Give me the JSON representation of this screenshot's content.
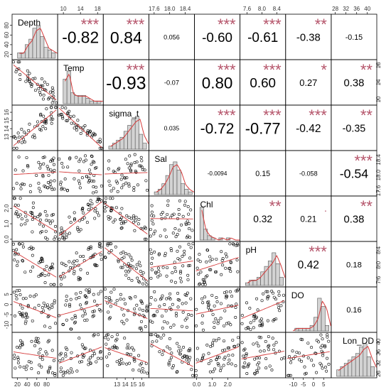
{
  "chart_data": {
    "type": "scatter-matrix",
    "variables": [
      "Depth",
      "Temp",
      "sigma_t",
      "Sal",
      "Chl",
      "pH",
      "DO",
      "Lon_DD"
    ],
    "axes": {
      "Depth": {
        "range": [
          12,
          100
        ],
        "ticks": [
          "20",
          "40",
          "60",
          "80",
          "20",
          "40",
          "60",
          "80"
        ]
      },
      "Temp": {
        "range": [
          9,
          19
        ],
        "ticks": [
          "10",
          "14",
          "18",
          "10",
          "14",
          "18"
        ]
      },
      "sigma_t": {
        "range": [
          11.5,
          16.7
        ],
        "ticks": [
          "13",
          "14",
          "15",
          "16",
          "13",
          "14",
          "15",
          "16"
        ]
      },
      "Sal": {
        "range": [
          17.5,
          18.6
        ],
        "ticks": [
          "17.6",
          "18.0",
          "18.4",
          "17.6",
          "18.0",
          "18.4"
        ]
      },
      "Chl": {
        "range": [
          -0.05,
          2.7
        ],
        "ticks": [
          "0.0",
          "1.0",
          "2.0",
          "0.0",
          "1.0",
          "2.0"
        ]
      },
      "pH": {
        "range": [
          7.45,
          8.6
        ],
        "ticks": [
          "7.6",
          "8.0",
          "8.4",
          "7.6",
          "8.0",
          "8.4"
        ]
      },
      "DO": {
        "range": [
          -13,
          8
        ],
        "ticks": [
          "-10",
          "-5",
          "0",
          "5",
          "-10",
          "-5",
          "0",
          "5"
        ]
      },
      "Lon_DD": {
        "range": [
          27,
          43
        ],
        "ticks": [
          "28",
          "32",
          "36",
          "40",
          "28",
          "32",
          "36",
          "40"
        ]
      }
    },
    "correlations": [
      {
        "a": "Depth",
        "b": "Temp",
        "r": "-0.82",
        "stars": "***"
      },
      {
        "a": "Depth",
        "b": "sigma_t",
        "r": "0.84",
        "stars": "***"
      },
      {
        "a": "Depth",
        "b": "Sal",
        "r": "0.056",
        "stars": ""
      },
      {
        "a": "Depth",
        "b": "Chl",
        "r": "-0.60",
        "stars": "***"
      },
      {
        "a": "Depth",
        "b": "pH",
        "r": "-0.61",
        "stars": "***"
      },
      {
        "a": "Depth",
        "b": "DO",
        "r": "-0.38",
        "stars": "**"
      },
      {
        "a": "Depth",
        "b": "Lon_DD",
        "r": "-0.15",
        "stars": ""
      },
      {
        "a": "Temp",
        "b": "sigma_t",
        "r": "-0.93",
        "stars": "***"
      },
      {
        "a": "Temp",
        "b": "Sal",
        "r": "-0.07",
        "stars": ""
      },
      {
        "a": "Temp",
        "b": "Chl",
        "r": "0.80",
        "stars": "***"
      },
      {
        "a": "Temp",
        "b": "pH",
        "r": "0.60",
        "stars": "***"
      },
      {
        "a": "Temp",
        "b": "DO",
        "r": "0.27",
        "stars": "*"
      },
      {
        "a": "Temp",
        "b": "Lon_DD",
        "r": "0.38",
        "stars": "**"
      },
      {
        "a": "sigma_t",
        "b": "Sal",
        "r": "0.035",
        "stars": ""
      },
      {
        "a": "sigma_t",
        "b": "Chl",
        "r": "-0.72",
        "stars": "***"
      },
      {
        "a": "sigma_t",
        "b": "pH",
        "r": "-0.77",
        "stars": "***"
      },
      {
        "a": "sigma_t",
        "b": "DO",
        "r": "-0.42",
        "stars": "***"
      },
      {
        "a": "sigma_t",
        "b": "Lon_DD",
        "r": "-0.35",
        "stars": "**"
      },
      {
        "a": "Sal",
        "b": "Chl",
        "r": "-0.0094",
        "stars": ""
      },
      {
        "a": "Sal",
        "b": "pH",
        "r": "0.15",
        "stars": ""
      },
      {
        "a": "Sal",
        "b": "DO",
        "r": "-0.058",
        "stars": ""
      },
      {
        "a": "Sal",
        "b": "Lon_DD",
        "r": "-0.54",
        "stars": "***"
      },
      {
        "a": "Chl",
        "b": "pH",
        "r": "0.32",
        "stars": "**"
      },
      {
        "a": "Chl",
        "b": "DO",
        "r": "0.21",
        "stars": "."
      },
      {
        "a": "Chl",
        "b": "Lon_DD",
        "r": "0.38",
        "stars": "**"
      },
      {
        "a": "pH",
        "b": "DO",
        "r": "0.42",
        "stars": "***"
      },
      {
        "a": "pH",
        "b": "Lon_DD",
        "r": "0.18",
        "stars": ""
      },
      {
        "a": "DO",
        "b": "Lon_DD",
        "r": "0.16",
        "stars": ""
      }
    ],
    "histogram_bar_color": "#d3d3d3",
    "density_color": "#d63a3a",
    "star_color": "#b5546a",
    "point_color": "#000000",
    "grid": false
  }
}
